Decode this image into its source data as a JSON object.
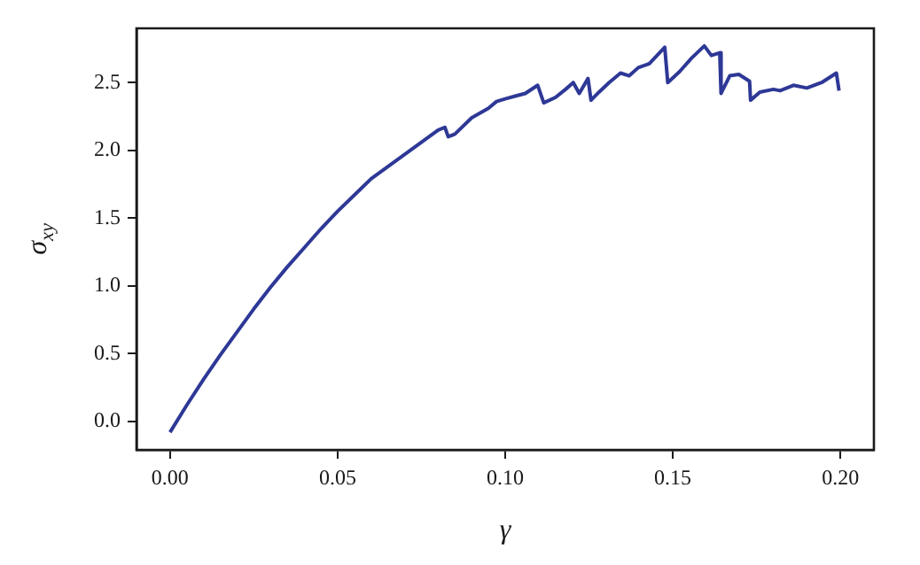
{
  "chart_data": {
    "type": "line",
    "xlabel": "γ",
    "ylabel": "σ$_{xy}$",
    "color": "#2e3896",
    "grid": false,
    "x": [
      0,
      0.005,
      0.01,
      0.015,
      0.02,
      0.025,
      0.03,
      0.035,
      0.04,
      0.045,
      0.05,
      0.055,
      0.06,
      0.065,
      0.07,
      0.075,
      0.08,
      0.082,
      0.083,
      0.085,
      0.09,
      0.095,
      0.0974,
      0.1,
      0.103,
      0.106,
      0.1097,
      0.1115,
      0.115,
      0.118,
      0.1203,
      0.1221,
      0.1247,
      0.1256,
      0.128,
      0.131,
      0.1344,
      0.137,
      0.1397,
      0.143,
      0.1476,
      0.1485,
      0.152,
      0.1556,
      0.1594,
      0.1615,
      0.164,
      0.1644,
      0.167,
      0.1697,
      0.1729,
      0.1732,
      0.176,
      0.18,
      0.182,
      0.186,
      0.19,
      0.1944,
      0.1988,
      0.1996
    ],
    "values": [
      -0.08,
      0.12,
      0.31,
      0.49,
      0.66,
      0.83,
      0.99,
      1.14,
      1.28,
      1.42,
      1.55,
      1.67,
      1.79,
      1.88,
      1.97,
      2.06,
      2.15,
      2.17,
      2.1,
      2.12,
      2.24,
      2.31,
      2.36,
      2.38,
      2.4,
      2.42,
      2.48,
      2.35,
      2.39,
      2.45,
      2.5,
      2.42,
      2.53,
      2.37,
      2.43,
      2.5,
      2.57,
      2.55,
      2.61,
      2.64,
      2.76,
      2.5,
      2.58,
      2.68,
      2.77,
      2.7,
      2.72,
      2.42,
      2.55,
      2.56,
      2.51,
      2.37,
      2.43,
      2.45,
      2.44,
      2.48,
      2.46,
      2.5,
      2.57,
      2.44
    ],
    "xlim": [
      -0.01,
      0.21
    ],
    "ylim": [
      -0.21,
      2.9
    ],
    "xticks": [
      {
        "value": 0,
        "label": "0.00"
      },
      {
        "value": 0.05,
        "label": "0.05"
      },
      {
        "value": 0.1,
        "label": "0.10"
      },
      {
        "value": 0.15,
        "label": "0.15"
      },
      {
        "value": 0.2,
        "label": "0.20"
      }
    ],
    "yticks": [
      {
        "value": 0,
        "label": "0.0"
      },
      {
        "value": 0.5,
        "label": "0.5"
      },
      {
        "value": 1,
        "label": "1.0"
      },
      {
        "value": 1.5,
        "label": "1.5"
      },
      {
        "value": 2,
        "label": "2.0"
      },
      {
        "value": 2.5,
        "label": "2.5"
      }
    ]
  }
}
